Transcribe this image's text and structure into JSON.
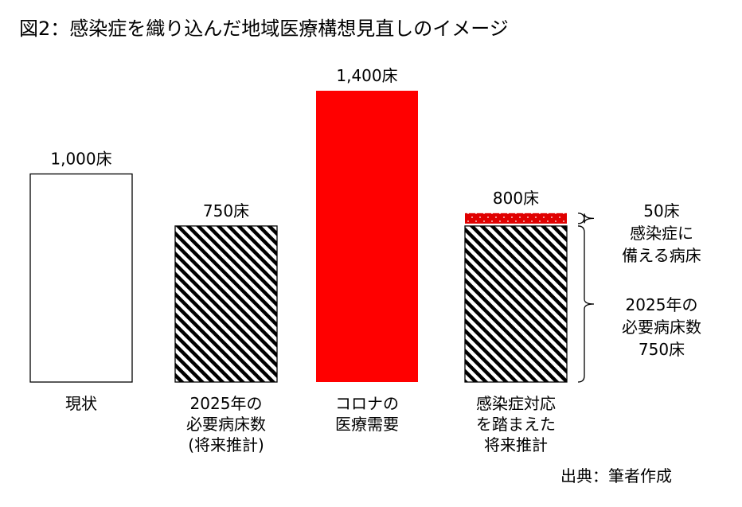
{
  "title": "図2：感染症を織り込んだ地域医療構想見直しのイメージ",
  "source": "出典：筆者作成",
  "chart_data": {
    "type": "bar",
    "title": "図2：感染症を織り込んだ地域医療構想見直しのイメージ",
    "unit": "床",
    "categories": [
      [
        "現状"
      ],
      [
        "2025年の",
        "必要病床数",
        "(将来推計)"
      ],
      [
        "コロナの",
        "医療需要"
      ],
      [
        "感染症対応",
        "を踏まえた",
        "将来推計"
      ]
    ],
    "value_labels": [
      "1,000床",
      "750床",
      "1,400床",
      "800床"
    ],
    "series": [
      {
        "values": [
          1000,
          750,
          1400,
          750
        ],
        "styles": [
          "outline",
          "hatched",
          "red",
          "hatched"
        ]
      },
      {
        "values": [
          0,
          0,
          0,
          50
        ],
        "styles": [
          "none",
          "none",
          "none",
          "dotted-red"
        ]
      }
    ],
    "colors": {
      "red": "#ff0000",
      "dotted_red": "#e00000",
      "outline": "#000000"
    },
    "annotations": [
      {
        "bar": 3,
        "segment": 1,
        "lines": [
          "50床",
          "感染症に",
          "備える病床"
        ]
      },
      {
        "bar": 3,
        "segment": 0,
        "lines": [
          "2025年の",
          "必要病床数",
          "750床"
        ]
      }
    ],
    "legend": "none",
    "grid": false
  }
}
